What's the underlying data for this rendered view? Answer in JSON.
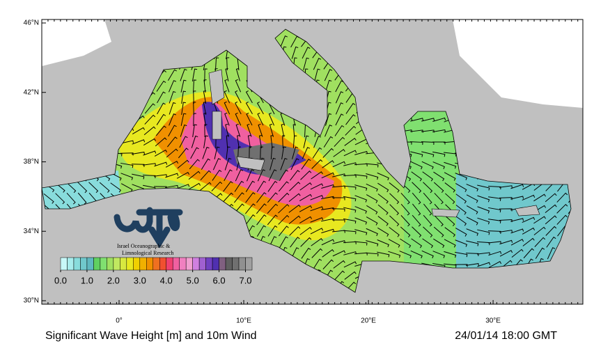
{
  "map": {
    "title": "Significant Wave Height [m] and 10m Wind",
    "timestamp": "24/01/14 18:00 GMT",
    "logo_text": [
      "Israel Oceanographic &",
      "Limnological Research"
    ],
    "xlim": [
      -6.2,
      37.2
    ],
    "ylim": [
      29.8,
      46.2
    ],
    "xticks": [
      {
        "value": 0,
        "label": "0°"
      },
      {
        "value": 10,
        "label": "10°E"
      },
      {
        "value": 20,
        "label": "20°E"
      },
      {
        "value": 30,
        "label": "30°E"
      }
    ],
    "yticks": [
      {
        "value": 30,
        "label": "30°N"
      },
      {
        "value": 34,
        "label": "34°N"
      },
      {
        "value": 38,
        "label": "38°N"
      },
      {
        "value": 42,
        "label": "42°N"
      },
      {
        "value": 46,
        "label": "46°N"
      }
    ]
  },
  "colorbar": {
    "clim": [
      0,
      7.25
    ],
    "colors": [
      "#c8f8f8",
      "#a8ecec",
      "#88dcdc",
      "#70c8cc",
      "#60b8c0",
      "#60d060",
      "#80e070",
      "#a0e060",
      "#c0e860",
      "#d8e840",
      "#e8e820",
      "#f0d000",
      "#f0b000",
      "#f09000",
      "#f07020",
      "#f05030",
      "#f04070",
      "#f060a0",
      "#f080c0",
      "#f0a0d0",
      "#d080e0",
      "#a060d0",
      "#7040c0",
      "#5030b0",
      "#806080",
      "#606060",
      "#707070",
      "#909090",
      "#a0a0a0"
    ],
    "ticks": [
      {
        "value": 0,
        "label": "0.0"
      },
      {
        "value": 1,
        "label": "1.0"
      },
      {
        "value": 2,
        "label": "2.0"
      },
      {
        "value": 3,
        "label": "3.0"
      },
      {
        "value": 4,
        "label": "4.0"
      },
      {
        "value": 5,
        "label": "5.0"
      },
      {
        "value": 6,
        "label": "6.0"
      },
      {
        "value": 7,
        "label": "7.0"
      }
    ]
  }
}
